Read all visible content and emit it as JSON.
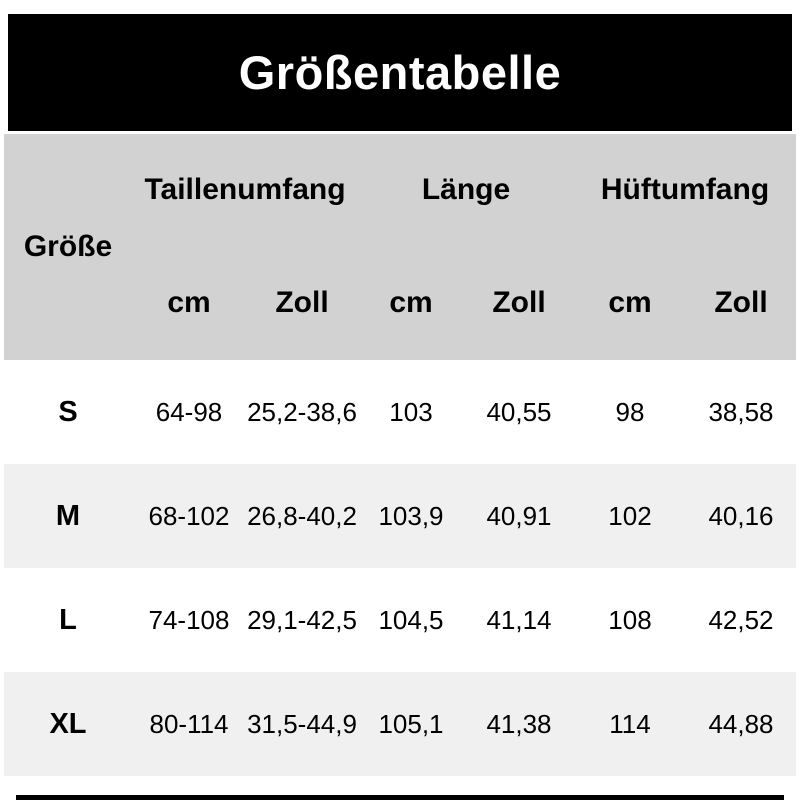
{
  "title": "Größentabelle",
  "table": {
    "size_column_label": "Größe",
    "groups": {
      "waist": "Taillenumfang",
      "length": "Länge",
      "hip": "Hüftumfang"
    },
    "units": {
      "cm": "cm",
      "zoll": "Zoll"
    },
    "rows": [
      {
        "size": "S",
        "waist_cm": "64-98",
        "waist_zoll": "25,2-38,6",
        "length_cm": "103",
        "length_zoll": "40,55",
        "hip_cm": "98",
        "hip_zoll": "38,58"
      },
      {
        "size": "M",
        "waist_cm": "68-102",
        "waist_zoll": "26,8-40,2",
        "length_cm": "103,9",
        "length_zoll": "40,91",
        "hip_cm": "102",
        "hip_zoll": "40,16"
      },
      {
        "size": "L",
        "waist_cm": "74-108",
        "waist_zoll": "29,1-42,5",
        "length_cm": "104,5",
        "length_zoll": "41,14",
        "hip_cm": "108",
        "hip_zoll": "42,52"
      },
      {
        "size": "XL",
        "waist_cm": "80-114",
        "waist_zoll": "31,5-44,9",
        "length_cm": "105,1",
        "length_zoll": "41,38",
        "hip_cm": "114",
        "hip_zoll": "44,88"
      }
    ]
  },
  "colors": {
    "banner_bg": "#000000",
    "banner_text": "#ffffff",
    "header_bg": "#d2d2d2",
    "stripe_bg": "#f0f0f0",
    "text": "#000000"
  }
}
